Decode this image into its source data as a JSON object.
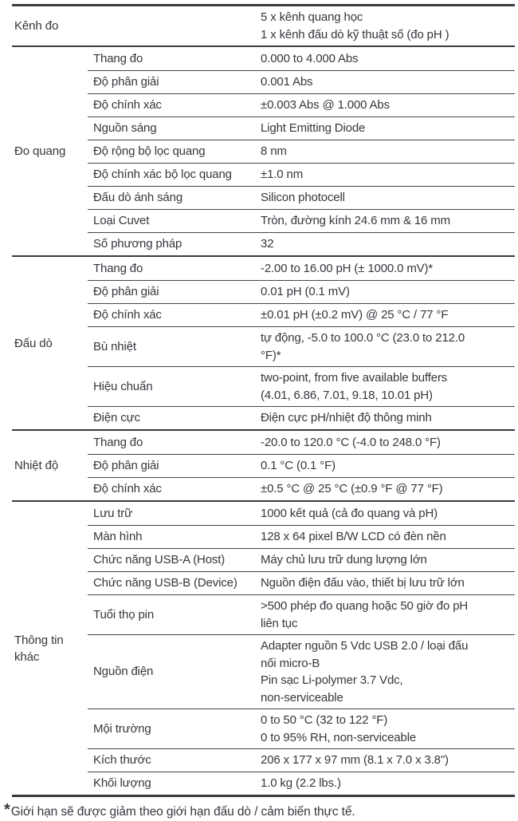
{
  "table": {
    "sections": [
      {
        "group": "Kênh đo",
        "rows": [
          {
            "prop": "",
            "value": [
              "5 x kênh quang học",
              "1 x kênh đấu dò kỹ thuật số (đo pH )"
            ]
          }
        ]
      },
      {
        "group": "Đo quang",
        "rows": [
          {
            "prop": "Thang đo",
            "value": [
              "0.000 to 4.000 Abs"
            ]
          },
          {
            "prop": "Độ phân giải",
            "value": [
              "0.001 Abs"
            ]
          },
          {
            "prop": "Độ chính xác",
            "value": [
              "±0.003 Abs @ 1.000 Abs"
            ]
          },
          {
            "prop": "Nguồn sáng",
            "value": [
              "Light Emitting Diode"
            ]
          },
          {
            "prop": "Độ rộng bộ lọc quang",
            "value": [
              "8 nm"
            ]
          },
          {
            "prop": "Độ chính xác bộ lọc quang",
            "value": [
              "±1.0 nm"
            ]
          },
          {
            "prop": "Đấu dò ánh sáng",
            "value": [
              "Silicon photocell"
            ]
          },
          {
            "prop": "Loại Cuvet",
            "value": [
              "Tròn, đường kính 24.6 mm & 16 mm"
            ]
          },
          {
            "prop": "Số phương pháp",
            "value": [
              "32"
            ]
          }
        ]
      },
      {
        "group": "Đấu dò",
        "rows": [
          {
            "prop": "Thang đo",
            "value": [
              "-2.00 to 16.00 pH (± 1000.0 mV)*"
            ]
          },
          {
            "prop": "Độ phân giải",
            "value": [
              "0.01 pH (0.1 mV)"
            ]
          },
          {
            "prop": "Độ chính xác",
            "value": [
              "±0.01 pH (±0.2 mV) @ 25 °C / 77 °F"
            ]
          },
          {
            "prop": "Bù nhiệt",
            "value": [
              "tự động, -5.0 to 100.0 °C (23.0 to 212.0",
              "°F)*"
            ]
          },
          {
            "prop": "Hiệu chuẩn",
            "value": [
              "two-point, from five available buffers",
              "(4.01, 6.86, 7.01, 9.18, 10.01 pH)"
            ]
          },
          {
            "prop": "Điện cực",
            "value": [
              "Điện cực pH/nhiệt độ thông minh"
            ]
          }
        ]
      },
      {
        "group": "Nhiệt độ",
        "rows": [
          {
            "prop": "Thang đo",
            "value": [
              "-20.0 to 120.0 °C (-4.0 to 248.0 °F)"
            ]
          },
          {
            "prop": "Độ phân giải",
            "value": [
              "0.1 °C (0.1 °F)"
            ]
          },
          {
            "prop": "Độ chính xác",
            "value": [
              "±0.5 °C @ 25 °C (±0.9 °F @ 77 °F)"
            ]
          }
        ]
      },
      {
        "group": "Thông tin khác",
        "rows": [
          {
            "prop": "Lưu trữ",
            "value": [
              "1000 kết quả (cả đo quang và pH)"
            ]
          },
          {
            "prop": "Màn hình",
            "value": [
              "128 x 64 pixel B/W LCD có đèn nền"
            ]
          },
          {
            "prop": "Chức năng USB-A (Host)",
            "value": [
              "Máy chủ lưu trữ dung lượng lớn"
            ]
          },
          {
            "prop": "Chức năng USB-B (Device)",
            "value": [
              "Nguồn điện đấu vào, thiết bị lưu trữ lớn"
            ]
          },
          {
            "prop": "Tuổi thọ pin",
            "value": [
              ">500 phép đo quang hoặc 50 giờ đo pH",
              "liên tục"
            ]
          },
          {
            "prop": "Nguồn điện",
            "value": [
              "Adapter nguồn 5 Vdc USB 2.0 / loại đấu",
              "nối micro-B",
              "Pin sạc Li-polymer 3.7 Vdc,",
              "non-serviceable"
            ]
          },
          {
            "prop": "Mội trường",
            "value": [
              "0 to 50 °C (32 to 122 °F)",
              "0 to 95% RH, non-serviceable"
            ]
          },
          {
            "prop": "Kích thước",
            "value": [
              "206 x 177 x 97 mm (8.1 x 7.0 x 3.8\")"
            ]
          },
          {
            "prop": "Khối lượng",
            "value": [
              "1.0 kg (2.2 lbs.)"
            ]
          }
        ]
      }
    ]
  },
  "footnote": {
    "marker": "*",
    "text": "Giới hạn sẽ được giảm theo giới hạn đấu dò / cảm biến thực tế."
  }
}
